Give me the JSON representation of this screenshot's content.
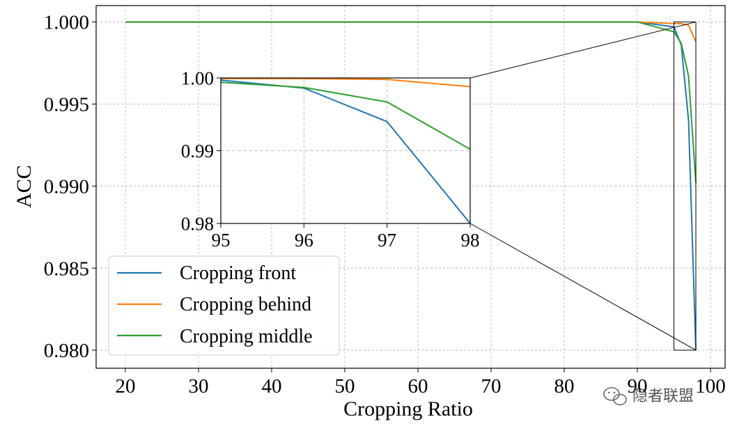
{
  "chart_data": [
    {
      "type": "line",
      "role": "main",
      "xlabel": "Cropping Ratio",
      "ylabel": "ACC",
      "xlim": [
        16,
        102
      ],
      "ylim": [
        0.9789,
        1.001
      ],
      "xticks": [
        20,
        30,
        40,
        50,
        60,
        70,
        80,
        90,
        100
      ],
      "xtick_labels": [
        "20",
        "30",
        "40",
        "50",
        "60",
        "70",
        "80",
        "90",
        "100"
      ],
      "yticks": [
        0.98,
        0.985,
        0.99,
        0.995,
        1.0
      ],
      "ytick_labels": [
        "0.980",
        "0.985",
        "0.990",
        "0.995",
        "1.000"
      ],
      "grid": true,
      "legend": "lower-left",
      "series": [
        {
          "name": "Cropping front",
          "color": "#1f77b4",
          "x": [
            20,
            30,
            40,
            50,
            60,
            70,
            80,
            90,
            95,
            96,
            97,
            98
          ],
          "y": [
            1.0,
            1.0,
            1.0,
            1.0,
            1.0,
            1.0,
            1.0,
            1.0,
            0.9997,
            0.9986,
            0.994,
            0.98
          ]
        },
        {
          "name": "Cropping behind",
          "color": "#ff7f0e",
          "x": [
            20,
            30,
            40,
            50,
            60,
            70,
            80,
            90,
            95,
            96,
            97,
            98
          ],
          "y": [
            1.0,
            1.0,
            1.0,
            1.0,
            1.0,
            1.0,
            1.0,
            1.0,
            0.9999,
            0.9999,
            0.9998,
            0.9988
          ]
        },
        {
          "name": "Cropping middle",
          "color": "#2ca02c",
          "x": [
            20,
            30,
            40,
            50,
            60,
            70,
            80,
            90,
            95,
            96,
            97,
            98
          ],
          "y": [
            1.0,
            1.0,
            1.0,
            1.0,
            1.0,
            1.0,
            1.0,
            1.0,
            0.9994,
            0.9987,
            0.9967,
            0.9902
          ]
        }
      ]
    },
    {
      "type": "line",
      "role": "inset",
      "xlim": [
        95,
        98
      ],
      "ylim": [
        0.98,
        1.0
      ],
      "xticks": [
        95,
        96,
        97,
        98
      ],
      "xtick_labels": [
        "95",
        "96",
        "97",
        "98"
      ],
      "yticks": [
        0.98,
        0.99,
        1.0
      ],
      "ytick_labels": [
        "0.98",
        "0.99",
        "1.00"
      ],
      "grid": true,
      "series": [
        {
          "color": "#1f77b4",
          "x": [
            95,
            96,
            97,
            98
          ],
          "y": [
            0.9997,
            0.9986,
            0.994,
            0.98
          ]
        },
        {
          "color": "#ff7f0e",
          "x": [
            95,
            96,
            97,
            98
          ],
          "y": [
            0.9999,
            0.9999,
            0.9998,
            0.9988
          ]
        },
        {
          "color": "#2ca02c",
          "x": [
            95,
            96,
            97,
            98
          ],
          "y": [
            0.9994,
            0.9987,
            0.9967,
            0.9902
          ]
        }
      ]
    }
  ],
  "watermark": "隐者联盟"
}
